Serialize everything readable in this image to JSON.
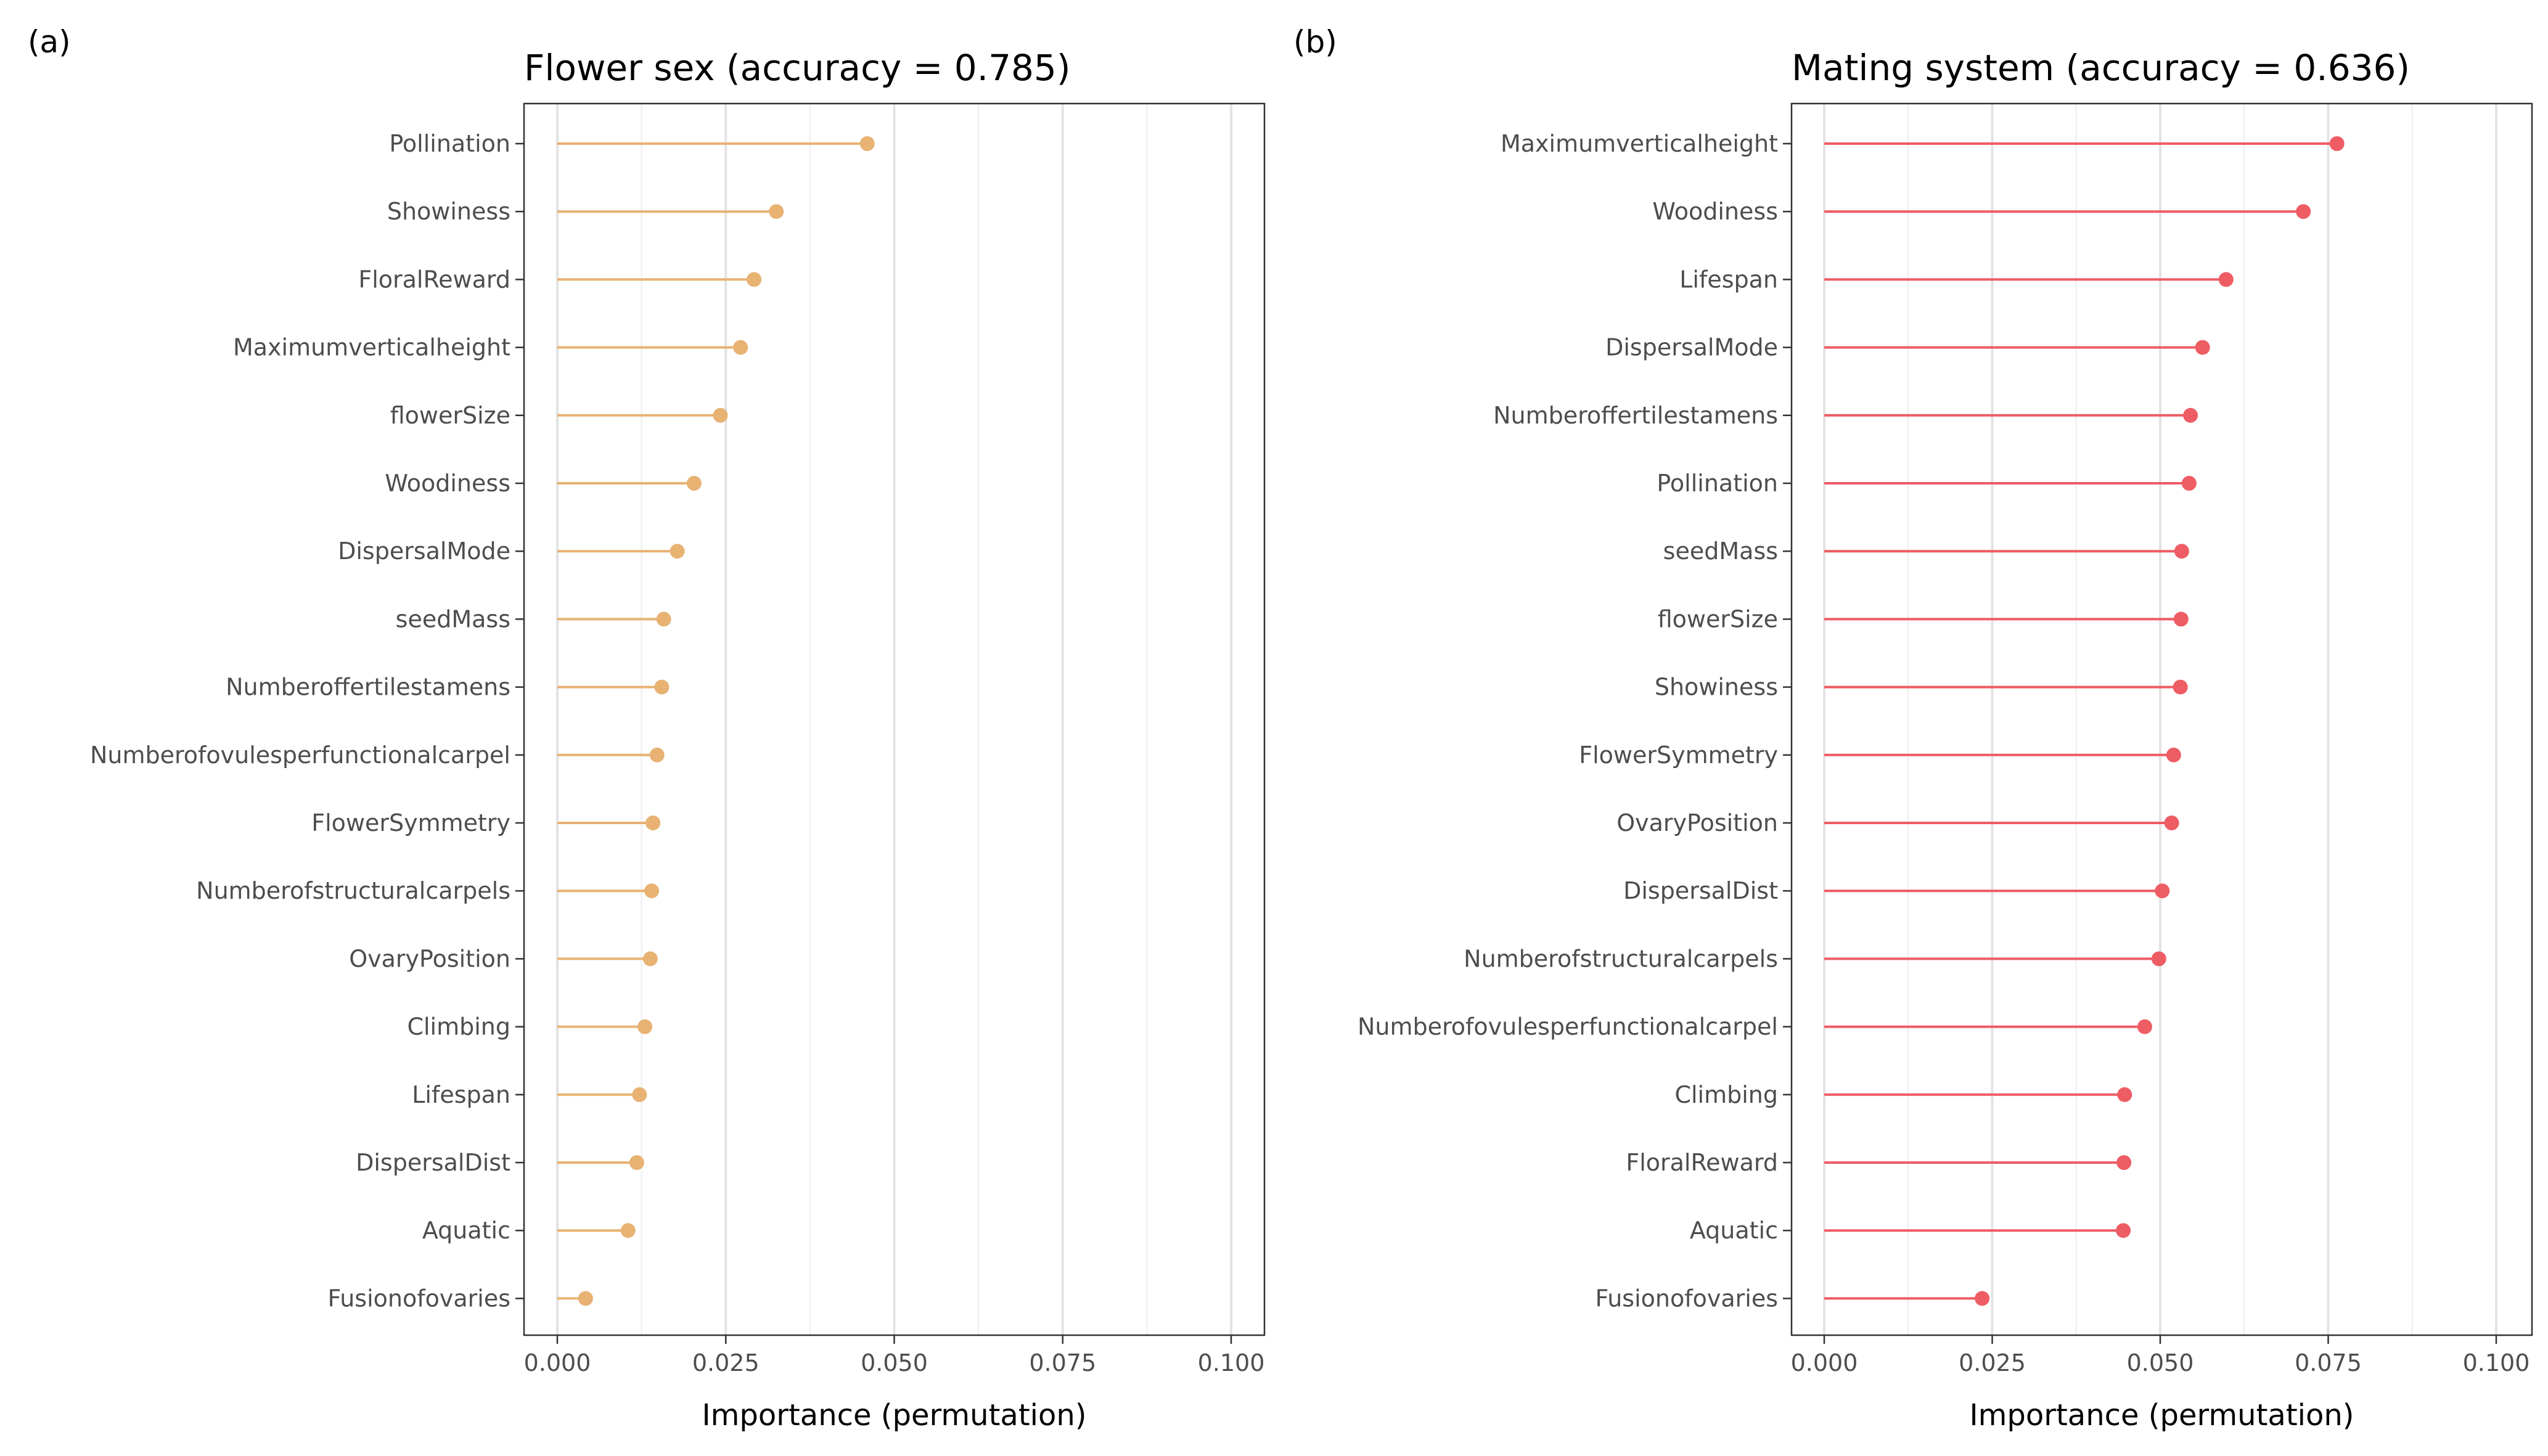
{
  "chart_data": [
    {
      "type": "lollipop",
      "panel_tag": "(a)",
      "title": "Flower sex (accuracy = 0.785)",
      "xlabel": "Importance (permutation)",
      "ylabel": "",
      "xlim": [
        0.0,
        0.1
      ],
      "xticks": [
        "0.000",
        "0.025",
        "0.050",
        "0.075",
        "0.100"
      ],
      "color": "#E8B273",
      "grid": "vertical",
      "categories": [
        "Pollination",
        "Showiness",
        "FloralReward",
        "Maximumverticalheight",
        "flowerSize",
        "Woodiness",
        "DispersalMode",
        "seedMass",
        "Numberoffertilestamens",
        "Numberofovulesperfunctionalcarpel",
        "FlowerSymmetry",
        "Numberofstructuralcarpels",
        "OvaryPosition",
        "Climbing",
        "Lifespan",
        "DispersalDist",
        "Aquatic",
        "Fusionofovaries"
      ],
      "values": [
        0.046,
        0.0325,
        0.0292,
        0.0272,
        0.0242,
        0.0203,
        0.0178,
        0.0158,
        0.0155,
        0.0148,
        0.0142,
        0.014,
        0.0138,
        0.013,
        0.0122,
        0.0118,
        0.0105,
        0.0042
      ]
    },
    {
      "type": "lollipop",
      "panel_tag": "(b)",
      "title": "Mating system (accuracy = 0.636)",
      "xlabel": "Importance (permutation)",
      "ylabel": "",
      "xlim": [
        0.0,
        0.1
      ],
      "xticks": [
        "0.000",
        "0.025",
        "0.050",
        "0.075",
        "0.100"
      ],
      "color": "#EE5C64",
      "grid": "vertical",
      "categories": [
        "Maximumverticalheight",
        "Woodiness",
        "Lifespan",
        "DispersalMode",
        "Numberoffertilestamens",
        "Pollination",
        "seedMass",
        "flowerSize",
        "Showiness",
        "FlowerSymmetry",
        "OvaryPosition",
        "DispersalDist",
        "Numberofstructuralcarpels",
        "Numberofovulesperfunctionalcarpel",
        "Climbing",
        "FloralReward",
        "Aquatic",
        "Fusionofovaries"
      ],
      "values": [
        0.0763,
        0.0713,
        0.0598,
        0.0563,
        0.0545,
        0.0543,
        0.0532,
        0.0531,
        0.053,
        0.052,
        0.0517,
        0.0503,
        0.0498,
        0.0477,
        0.0447,
        0.0446,
        0.0445,
        0.0235
      ]
    }
  ]
}
